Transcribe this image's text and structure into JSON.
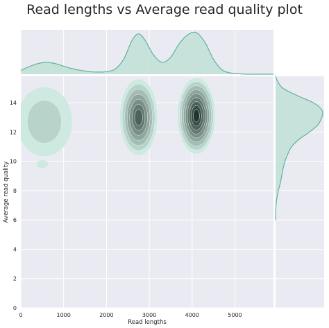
{
  "chart_data": {
    "type": "kde_jointplot",
    "title": "Read lengths vs Average read quality plot",
    "xlabel": "Read lengths",
    "ylabel": "Average read quality",
    "xlim": [
      0,
      5900
    ],
    "ylim": [
      0,
      15.8
    ],
    "xticks": [
      0,
      1000,
      2000,
      3000,
      4000,
      5000
    ],
    "yticks": [
      0,
      2,
      4,
      6,
      8,
      10,
      12,
      14
    ],
    "grid": true,
    "colors": {
      "background": "#eaeaf2",
      "grid": "#ffffff",
      "fill_light": "#cde9e0",
      "fill_dark": "#0f1f1a",
      "line": "#5fb39c",
      "marginal_fill": "#bfe0d6"
    },
    "joint_clusters": [
      {
        "x": 2750,
        "y": 13.0,
        "density": 0.75
      },
      {
        "x": 4100,
        "y": 13.1,
        "density": 1.0
      },
      {
        "x": 550,
        "y": 12.7,
        "density": 0.25
      },
      {
        "x": 500,
        "y": 9.8,
        "density": 0.08
      }
    ],
    "marginal_x": {
      "x": [
        0,
        200,
        400,
        600,
        800,
        1000,
        1200,
        1400,
        1600,
        1800,
        2000,
        2200,
        2400,
        2600,
        2750,
        2900,
        3100,
        3300,
        3500,
        3700,
        3900,
        4100,
        4300,
        4500,
        4700,
        4900,
        5100,
        5300,
        5500,
        5700,
        5900
      ],
      "density": [
        0.09,
        0.18,
        0.25,
        0.28,
        0.25,
        0.19,
        0.13,
        0.09,
        0.06,
        0.05,
        0.06,
        0.12,
        0.35,
        0.8,
        0.95,
        0.8,
        0.45,
        0.28,
        0.4,
        0.72,
        0.93,
        0.98,
        0.75,
        0.35,
        0.1,
        0.03,
        0.01,
        0.0,
        0.0,
        0.0,
        0.0
      ]
    },
    "marginal_y": {
      "y": [
        6.0,
        7.0,
        7.5,
        8.0,
        8.5,
        9.0,
        9.5,
        10.0,
        10.5,
        11.0,
        11.5,
        12.0,
        12.5,
        13.0,
        13.3,
        13.6,
        14.0,
        14.5,
        15.0,
        15.5,
        15.8
      ],
      "density": [
        0.0,
        0.01,
        0.03,
        0.06,
        0.1,
        0.13,
        0.16,
        0.2,
        0.26,
        0.34,
        0.5,
        0.72,
        0.9,
        0.98,
        1.0,
        0.96,
        0.8,
        0.45,
        0.15,
        0.04,
        0.0
      ]
    }
  }
}
